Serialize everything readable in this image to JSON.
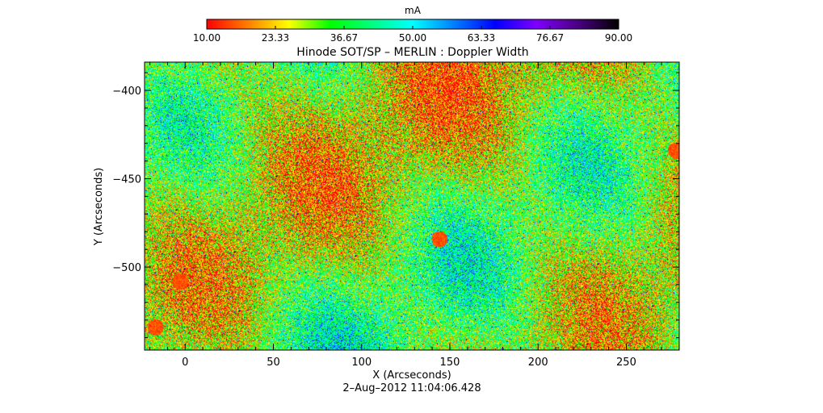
{
  "chart_data": {
    "type": "heatmap",
    "title": "Hinode SOT/SP – MERLIN : Doppler Width",
    "xlabel": "X (Arcseconds)",
    "ylabel": "Y (Arcseconds)",
    "xlim": [
      -23,
      280
    ],
    "ylim": [
      -547,
      -384
    ],
    "x_ticks": [
      0,
      50,
      100,
      150,
      200,
      250
    ],
    "y_ticks": [
      -400,
      -450,
      -500
    ],
    "timestamp": "2–Aug–2012 11:04:06.428",
    "colorbar": {
      "label": "mA",
      "min": 10.0,
      "max": 90.0,
      "tick_labels": [
        "10.00",
        "23.33",
        "36.67",
        "50.00",
        "63.33",
        "76.67",
        "90.00"
      ],
      "tick_values": [
        10.0,
        23.33,
        36.67,
        50.0,
        63.33,
        76.67,
        90.0
      ],
      "colors": [
        "#ff0000",
        "#ff7f00",
        "#ffff00",
        "#00ff00",
        "#00ff7f",
        "#00ffff",
        "#007fff",
        "#0000ff",
        "#7f00ff",
        "#4b0082",
        "#000000"
      ]
    },
    "features": [
      {
        "description": "low-width patch",
        "x": 144,
        "y": -484,
        "value_mA": 12
      },
      {
        "description": "low-width patch",
        "x": -3,
        "y": -508,
        "value_mA": 12
      },
      {
        "description": "low-width patch",
        "x": -17,
        "y": -534,
        "value_mA": 12
      },
      {
        "description": "low-width patch",
        "x": 278,
        "y": -434,
        "value_mA": 12
      }
    ]
  }
}
